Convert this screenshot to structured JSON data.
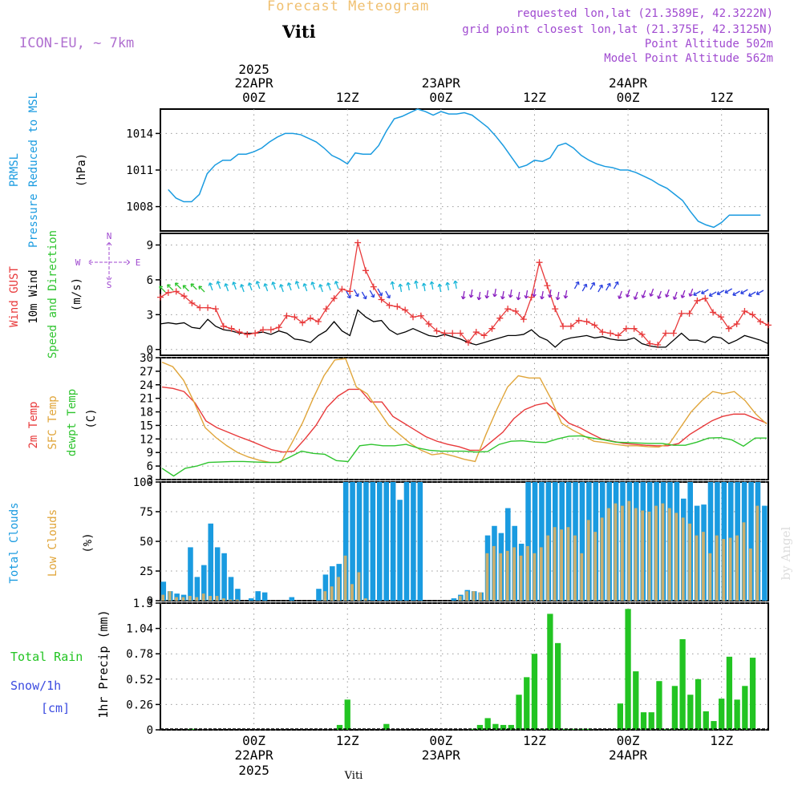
{
  "header": {
    "title": "Forecast Meteogram",
    "model": "ICON-EU, ~ 7km",
    "location": "Viti",
    "requested": "requested lon,lat (21.3589E, 42.3222N)",
    "gridpoint": "grid point closest lon,lat (21.375E, 42.3125N)",
    "point_alt": "Point Altitude 502m",
    "model_alt": "Model Point Altitude 562m",
    "footer_location": "Viti",
    "watermark": "by Angel"
  },
  "colors": {
    "pressure": "#1a9be0",
    "wind": "#000000",
    "gust": "#e8393a",
    "temp2m": "#e8393a",
    "sfc": "#e0a53a",
    "dew": "#2ec42e",
    "total_clouds": "#1a9be0",
    "low_clouds": "#c9ae6e",
    "rain": "#22c422",
    "snow_label": "#3a4ae0",
    "title": "#f0c070",
    "info": "#a04ad0",
    "model": "#b070d0"
  },
  "axis_top": {
    "year": "2025",
    "labels": [
      {
        "hour": 24,
        "day": "22APR",
        "time": "00Z"
      },
      {
        "hour": 36,
        "day": "",
        "time": "12Z"
      },
      {
        "hour": 48,
        "day": "23APR",
        "time": "00Z"
      },
      {
        "hour": 60,
        "day": "",
        "time": "12Z"
      },
      {
        "hour": 72,
        "day": "24APR",
        "time": "00Z"
      },
      {
        "hour": 84,
        "day": "",
        "time": "12Z"
      }
    ]
  },
  "axis_bottom": {
    "year": "2025",
    "labels": [
      {
        "hour": 24,
        "time": "00Z",
        "day": "22APR"
      },
      {
        "hour": 36,
        "time": "12Z",
        "day": ""
      },
      {
        "hour": 48,
        "time": "00Z",
        "day": "23APR"
      },
      {
        "hour": 60,
        "time": "12Z",
        "day": ""
      },
      {
        "hour": 72,
        "time": "00Z",
        "day": "24APR"
      },
      {
        "hour": 84,
        "time": "12Z",
        "day": ""
      }
    ]
  },
  "panel_labels": {
    "pressure": {
      "l1": "PRMSL",
      "l2": "Pressure Reduced to MSL",
      "unit": "(hPa)"
    },
    "wind": {
      "gust": "Wind GUST",
      "wind": "10m Wind",
      "dir": "Speed and Direction",
      "unit": "(m/s)",
      "compass_n": "N",
      "compass_s": "S",
      "compass_w": "W",
      "compass_e": "E"
    },
    "temp": {
      "t2m": "2m Temp",
      "sfc": "SFC Temp",
      "dew": "dewpt Temp",
      "unit": "(C)"
    },
    "clouds": {
      "total": "Total Clouds",
      "low": "Low Clouds",
      "unit": "(%)"
    },
    "precip": {
      "rain": "Total  Rain",
      "snow": "Snow/1h",
      "snow_unit": "[cm]",
      "ylabel": "1hr Precip (mm)"
    }
  },
  "chart_data": [
    {
      "type": "line",
      "ylabel": "(hPa)",
      "x_hours": [
        13,
        14,
        15,
        16,
        17,
        18,
        19,
        20,
        21,
        22,
        23,
        24,
        25,
        26,
        27,
        28,
        29,
        30,
        31,
        32,
        33,
        34,
        35,
        36,
        37,
        38,
        39,
        40,
        41,
        42,
        43,
        44,
        45,
        46,
        47,
        48,
        49,
        50,
        51,
        52,
        53,
        54,
        55,
        56,
        57,
        58,
        59,
        60,
        61,
        62,
        63,
        64,
        65,
        66,
        67,
        68,
        69,
        70,
        71,
        72,
        73,
        74,
        75,
        76,
        77,
        78,
        79,
        80,
        81,
        82,
        83,
        84,
        85,
        86,
        87,
        88,
        89
      ],
      "yticks": [
        "1008",
        "1011",
        "1014"
      ],
      "ylim": [
        1006,
        1016
      ],
      "values": [
        1009.4,
        1008.7,
        1008.4,
        1008.4,
        1009,
        1010.7,
        1011.4,
        1011.8,
        1011.8,
        1012.3,
        1012.3,
        1012.5,
        1012.8,
        1013.3,
        1013.7,
        1014,
        1014,
        1013.9,
        1013.6,
        1013.3,
        1012.8,
        1012.2,
        1011.9,
        1011.5,
        1012.4,
        1012.3,
        1012.3,
        1013,
        1014.2,
        1015.2,
        1015.4,
        1015.7,
        1016,
        1015.8,
        1015.5,
        1015.8,
        1015.6,
        1015.6,
        1015.7,
        1015.5,
        1015,
        1014.5,
        1013.8,
        1013,
        1012.1,
        1011.2,
        1011.4,
        1011.8,
        1011.7,
        1012,
        1013,
        1013.2,
        1012.8,
        1012.2,
        1011.8,
        1011.5,
        1011.3,
        1011.2,
        1011,
        1011,
        1010.8,
        1010.5,
        1010.2,
        1009.8,
        1009.5,
        1009,
        1008.5,
        1007.6,
        1006.8,
        1006.5,
        1006.3,
        1006.7,
        1007.3,
        1007.3,
        1007.3,
        1007.3,
        1007.3
      ]
    },
    {
      "type": "line",
      "ylabel": "(m/s)",
      "yticks": [
        "0",
        "3",
        "6",
        "9"
      ],
      "ylim": [
        -0.5,
        10
      ],
      "series": [
        {
          "name": "10m Wind",
          "values": [
            2.2,
            2.3,
            2.2,
            2.3,
            1.9,
            1.8,
            2.6,
            2.0,
            1.7,
            1.6,
            1.4,
            1.4,
            1.4,
            1.5,
            1.3,
            1.6,
            1.4,
            0.9,
            0.8,
            0.6,
            1.2,
            1.6,
            2.4,
            1.6,
            1.2,
            3.4,
            2.8,
            2.4,
            2.5,
            1.7,
            1.3,
            1.5,
            1.8,
            1.5,
            1.2,
            1.1,
            1.3,
            1.1,
            0.9,
            0.6,
            0.4,
            0.6,
            0.8,
            1.0,
            1.2,
            1.2,
            1.3,
            1.7,
            1.1,
            0.8,
            0.2,
            0.8,
            1.0,
            1.1,
            1.2,
            1.0,
            1.1,
            0.9,
            0.8,
            0.8,
            1.0,
            0.5,
            0.3,
            0.2,
            0.2,
            0.8,
            1.4,
            0.8,
            0.8,
            0.6,
            1.1,
            1.0,
            0.5,
            0.8,
            1.2,
            1.0,
            0.8,
            0.5
          ]
        },
        {
          "name": "Wind GUST",
          "values": [
            4.5,
            4.9,
            5.0,
            4.6,
            4.0,
            3.6,
            3.6,
            3.5,
            2.0,
            1.8,
            1.5,
            1.3,
            1.4,
            1.7,
            1.7,
            1.9,
            2.9,
            2.8,
            2.3,
            2.7,
            2.4,
            3.5,
            4.4,
            5.2,
            5.0,
            9.2,
            6.8,
            5.4,
            4.3,
            3.8,
            3.7,
            3.4,
            2.8,
            2.9,
            2.2,
            1.6,
            1.4,
            1.4,
            1.4,
            0.6,
            1.5,
            1.2,
            1.8,
            2.7,
            3.5,
            3.3,
            2.6,
            4.5,
            7.5,
            5.5,
            3.5,
            2.0,
            2.0,
            2.5,
            2.4,
            2.1,
            1.5,
            1.4,
            1.2,
            1.8,
            1.8,
            1.3,
            0.5,
            0.4,
            1.4,
            1.4,
            3.1,
            3.1,
            4.2,
            4.4,
            3.2,
            2.8,
            1.8,
            2.2,
            3.3,
            3.0,
            2.4,
            2.1
          ]
        }
      ],
      "direction_arrows": {
        "count": 77,
        "colors": [
          "green",
          "cyan",
          "blue",
          "purple"
        ]
      }
    },
    {
      "type": "line",
      "ylabel": "(C)",
      "yticks": [
        "3",
        "6",
        "9",
        "12",
        "15",
        "18",
        "21",
        "24",
        "27",
        "30"
      ],
      "ylim": [
        3,
        30
      ],
      "series": [
        {
          "name": "2m Temp",
          "values": [
            23.5,
            23.2,
            22.5,
            20,
            16,
            14.5,
            13.5,
            12.5,
            11.6,
            10.6,
            9.6,
            9.1,
            9.3,
            12,
            15,
            19,
            21.5,
            23,
            23,
            20.2,
            20.2,
            17,
            15.5,
            14,
            12.5,
            11.5,
            10.8,
            10.3,
            9.5,
            9.5,
            11.5,
            13.5,
            16.5,
            18.5,
            19.5,
            20,
            17.8,
            15.5,
            14.5,
            13.2,
            12,
            11.5,
            11,
            10.8,
            10.6,
            10.5,
            10.5,
            11,
            13,
            14.5,
            16,
            17,
            17.5,
            17.5,
            16.5,
            15.5
          ]
        },
        {
          "name": "SFC Temp",
          "values": [
            29,
            28,
            25,
            20,
            14.5,
            12.3,
            10.5,
            9,
            8,
            7.3,
            6.8,
            6.8,
            11,
            15.5,
            21,
            26,
            29.5,
            29.8,
            23.5,
            22,
            18.5,
            15,
            13,
            11,
            9.5,
            8.5,
            8.8,
            8.2,
            7.5,
            7,
            13,
            18.5,
            23.5,
            26,
            25.5,
            25.5,
            21,
            15.5,
            14,
            12.8,
            11.5,
            11.2,
            10.8,
            10.5,
            10.5,
            10.3,
            10.2,
            11,
            14.5,
            18,
            20.5,
            22.5,
            22,
            22.5,
            20.5,
            17.5,
            15.3
          ]
        },
        {
          "name": "dewpt Temp",
          "values": [
            5.5,
            3.8,
            5.5,
            6,
            6.8,
            6.9,
            7,
            7,
            6.9,
            6.8,
            6.8,
            8,
            9.3,
            8.8,
            8.6,
            7.2,
            7,
            10.5,
            10.8,
            10.5,
            10.5,
            10.8,
            10,
            9.5,
            9.3,
            9.3,
            9.3,
            9.1,
            9.2,
            10.8,
            11.5,
            11.6,
            11.3,
            11.2,
            12,
            12.6,
            12.7,
            12.2,
            11.8,
            11.3,
            11.2,
            11.1,
            11,
            11,
            10.6,
            10.6,
            11.3,
            12.2,
            12.3,
            11.8,
            10.4,
            12.2,
            12.2
          ]
        }
      ]
    },
    {
      "type": "bar",
      "ylabel": "(%)",
      "yticks": [
        "0",
        "25",
        "50",
        "75",
        "100"
      ],
      "ylim": [
        0,
        100
      ],
      "series": [
        {
          "name": "Total Clouds",
          "values": [
            16,
            8,
            6,
            5,
            45,
            20,
            30,
            65,
            45,
            40,
            20,
            10,
            0,
            2,
            8,
            7,
            0,
            0,
            0,
            3,
            0,
            0,
            0,
            10,
            22,
            29,
            31,
            100,
            100,
            100,
            100,
            100,
            100,
            100,
            100,
            85,
            100,
            100,
            100,
            0,
            0,
            0,
            0,
            2,
            5,
            9,
            8,
            7,
            55,
            63,
            57,
            78,
            63,
            48,
            100,
            100,
            100,
            100,
            100,
            100,
            100,
            100,
            100,
            100,
            100,
            100,
            100,
            100,
            100,
            100,
            100,
            100,
            100,
            100,
            100,
            100,
            100,
            86,
            100,
            80,
            81,
            100,
            100,
            100,
            100,
            100,
            100,
            100,
            100,
            80
          ]
        },
        {
          "name": "Low Clouds",
          "values": [
            5,
            8,
            3,
            3,
            4,
            3,
            6,
            4,
            4,
            2,
            1,
            1,
            0,
            0,
            0,
            0,
            0,
            0,
            0,
            0,
            0,
            0,
            0,
            0,
            8,
            12,
            20,
            38,
            14,
            24,
            2,
            0,
            0,
            0,
            0,
            0,
            0,
            0,
            0,
            0,
            0,
            0,
            0,
            0,
            4,
            8,
            8,
            7,
            40,
            46,
            40,
            42,
            45,
            38,
            46,
            40,
            45,
            55,
            62,
            60,
            62,
            55,
            40,
            68,
            58,
            70,
            78,
            82,
            80,
            84,
            78,
            76,
            75,
            80,
            82,
            78,
            74,
            70,
            65,
            55,
            58,
            40,
            55,
            52,
            53,
            55,
            66,
            44,
            80
          ]
        }
      ]
    },
    {
      "type": "bar",
      "ylabel": "1hr Precip (mm)",
      "yticks": [
        "0",
        "0.26",
        "0.52",
        "0.78",
        "1.04",
        "1.3"
      ],
      "ylim": [
        0,
        1.3
      ],
      "x_hours": [
        16,
        35,
        36,
        41,
        52,
        53,
        54,
        55,
        56,
        57,
        58,
        59,
        60,
        61,
        62,
        63,
        64,
        65,
        66,
        67,
        71,
        72,
        73,
        74,
        75,
        76,
        77,
        78,
        79,
        80,
        81,
        82,
        83,
        84,
        85,
        86,
        87,
        88
      ],
      "values": [
        0.01,
        0.05,
        0.31,
        0.06,
        0.01,
        0.05,
        0.12,
        0.06,
        0.05,
        0.05,
        0.36,
        0.54,
        0.78,
        0.01,
        1.19,
        0.89,
        0.01,
        0.01,
        0.01,
        0.01,
        0.27,
        1.24,
        0.6,
        0.18,
        0.18,
        0.5,
        0.01,
        0.45,
        0.93,
        0.36,
        0.52,
        0.19,
        0.09,
        0.32,
        0.75,
        0.31,
        0.45,
        0.74
      ]
    }
  ]
}
